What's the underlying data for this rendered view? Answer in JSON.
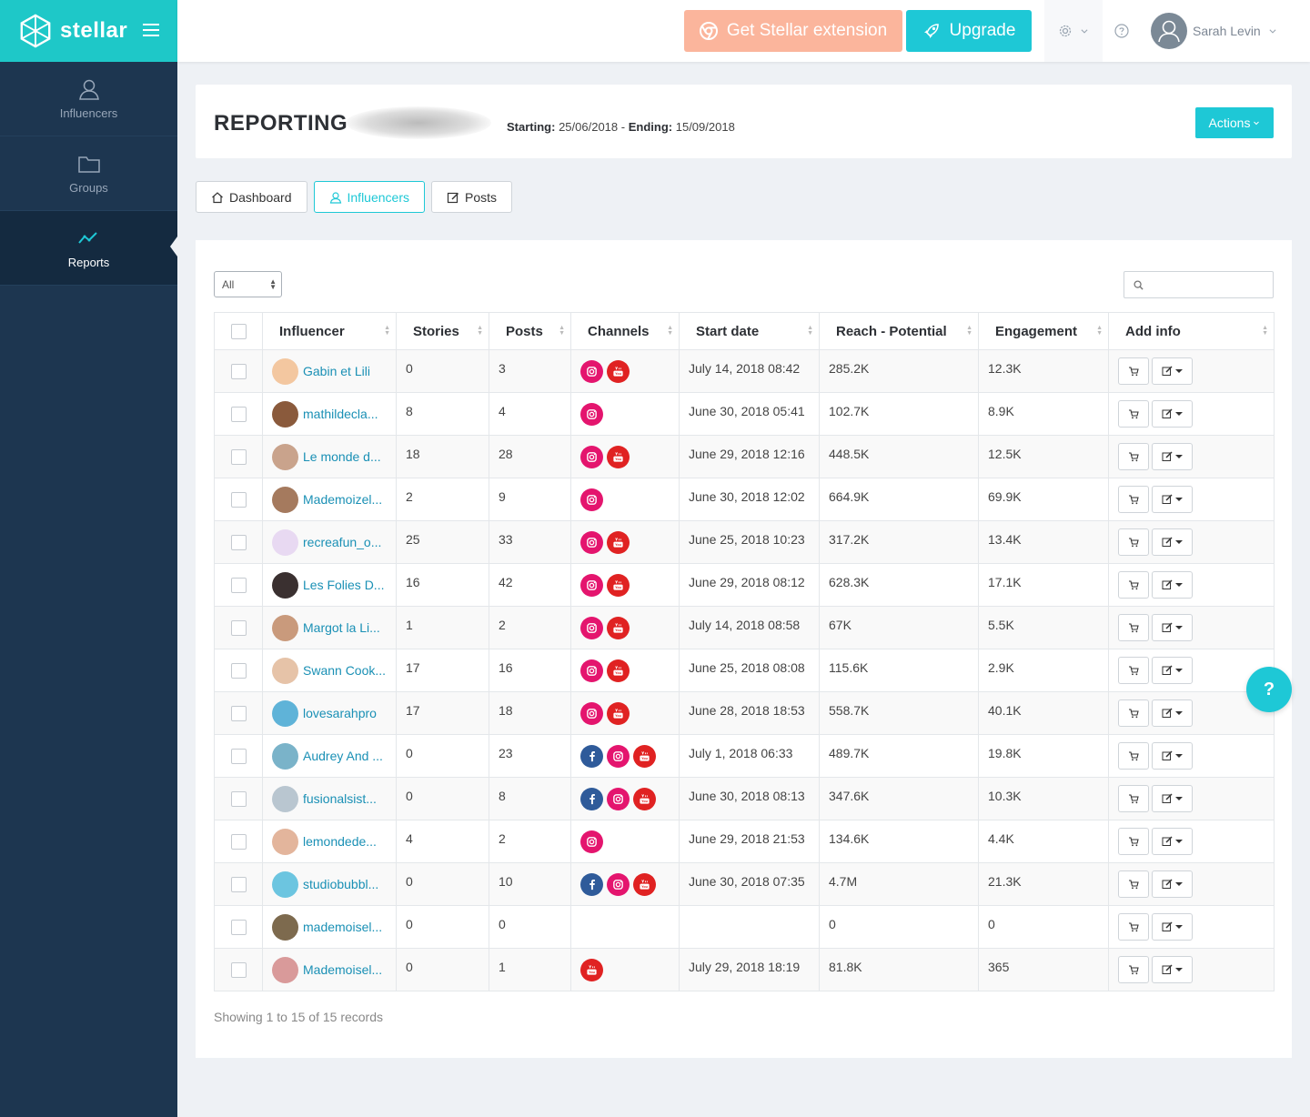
{
  "app": {
    "name": "stellar"
  },
  "sidebar": {
    "items": [
      {
        "label": "Influencers",
        "icon": "user-icon"
      },
      {
        "label": "Groups",
        "icon": "folder-icon"
      },
      {
        "label": "Reports",
        "icon": "trend-icon",
        "active": true
      }
    ]
  },
  "topbar": {
    "extension_label": "Get Stellar extension",
    "upgrade_label": "Upgrade",
    "user_name": "Sarah Levin"
  },
  "report": {
    "title": "REPORTING",
    "starting_label": "Starting:",
    "starting_value": "25/06/2018",
    "ending_label": "Ending:",
    "ending_value": "15/09/2018",
    "actions_label": "Actions"
  },
  "tabs": [
    {
      "label": "Dashboard",
      "icon": "home-icon"
    },
    {
      "label": "Influencers",
      "icon": "user-icon",
      "active": true
    },
    {
      "label": "Posts",
      "icon": "edit-icon"
    }
  ],
  "filter": {
    "selected": "All"
  },
  "table": {
    "columns": [
      "Influencer",
      "Stories",
      "Posts",
      "Channels",
      "Start date",
      "Reach - Potential",
      "Engagement",
      "Add info"
    ],
    "rows": [
      {
        "name": "Gabin et Lili",
        "stories": "0",
        "posts": "3",
        "channels": [
          "instagram",
          "youtube"
        ],
        "start": "July 14, 2018 08:42",
        "reach": "285.2K",
        "engagement": "12.3K",
        "avatar_color": "#f3c7a0"
      },
      {
        "name": "mathildecla...",
        "stories": "8",
        "posts": "4",
        "channels": [
          "instagram"
        ],
        "start": "June 30, 2018 05:41",
        "reach": "102.7K",
        "engagement": "8.9K",
        "avatar_color": "#8a5a3c"
      },
      {
        "name": "Le monde d...",
        "stories": "18",
        "posts": "28",
        "channels": [
          "instagram",
          "youtube"
        ],
        "start": "June 29, 2018 12:16",
        "reach": "448.5K",
        "engagement": "12.5K",
        "avatar_color": "#c9a38c"
      },
      {
        "name": "Mademoizel...",
        "stories": "2",
        "posts": "9",
        "channels": [
          "instagram"
        ],
        "start": "June 30, 2018 12:02",
        "reach": "664.9K",
        "engagement": "69.9K",
        "avatar_color": "#a57a5e"
      },
      {
        "name": "recreafun_o...",
        "stories": "25",
        "posts": "33",
        "channels": [
          "instagram",
          "youtube"
        ],
        "start": "June 25, 2018 10:23",
        "reach": "317.2K",
        "engagement": "13.4K",
        "avatar_color": "#e8d9f2"
      },
      {
        "name": "Les Folies D...",
        "stories": "16",
        "posts": "42",
        "channels": [
          "instagram",
          "youtube"
        ],
        "start": "June 29, 2018 08:12",
        "reach": "628.3K",
        "engagement": "17.1K",
        "avatar_color": "#3a3030"
      },
      {
        "name": "Margot la Li...",
        "stories": "1",
        "posts": "2",
        "channels": [
          "instagram",
          "youtube"
        ],
        "start": "July 14, 2018 08:58",
        "reach": "67K",
        "engagement": "5.5K",
        "avatar_color": "#c99a7c"
      },
      {
        "name": "Swann Cook...",
        "stories": "17",
        "posts": "16",
        "channels": [
          "instagram",
          "youtube"
        ],
        "start": "June 25, 2018 08:08",
        "reach": "115.6K",
        "engagement": "2.9K",
        "avatar_color": "#e6c3a8"
      },
      {
        "name": "lovesarahpro",
        "stories": "17",
        "posts": "18",
        "channels": [
          "instagram",
          "youtube"
        ],
        "start": "June 28, 2018 18:53",
        "reach": "558.7K",
        "engagement": "40.1K",
        "avatar_color": "#5fb3d8"
      },
      {
        "name": "Audrey And ...",
        "stories": "0",
        "posts": "23",
        "channels": [
          "facebook",
          "instagram",
          "youtube"
        ],
        "start": "July 1, 2018 06:33",
        "reach": "489.7K",
        "engagement": "19.8K",
        "avatar_color": "#7ab3c9"
      },
      {
        "name": "fusionalsist...",
        "stories": "0",
        "posts": "8",
        "channels": [
          "facebook",
          "instagram",
          "youtube"
        ],
        "start": "June 30, 2018 08:13",
        "reach": "347.6K",
        "engagement": "10.3K",
        "avatar_color": "#b9c6d0"
      },
      {
        "name": "lemondede...",
        "stories": "4",
        "posts": "2",
        "channels": [
          "instagram"
        ],
        "start": "June 29, 2018 21:53",
        "reach": "134.6K",
        "engagement": "4.4K",
        "avatar_color": "#e3b59c"
      },
      {
        "name": "studiobubbl...",
        "stories": "0",
        "posts": "10",
        "channels": [
          "facebook",
          "instagram",
          "youtube"
        ],
        "start": "June 30, 2018 07:35",
        "reach": "4.7M",
        "engagement": "21.3K",
        "avatar_color": "#6cc5e0"
      },
      {
        "name": "mademoisel...",
        "stories": "0",
        "posts": "0",
        "channels": [],
        "start": "",
        "reach": "0",
        "engagement": "0",
        "avatar_color": "#7d6a4e"
      },
      {
        "name": "Mademoisel...",
        "stories": "0",
        "posts": "1",
        "channels": [
          "youtube"
        ],
        "start": "July 29, 2018 18:19",
        "reach": "81.8K",
        "engagement": "365",
        "avatar_color": "#d99a9a"
      }
    ]
  },
  "footer": {
    "records_text": "Showing 1 to 15 of 15 records"
  },
  "help_fab": {
    "label": "?"
  },
  "colors": {
    "accent": "#1ec8d6",
    "sidebar": "#1d3650",
    "instagram": "#e4156e",
    "youtube": "#e02222",
    "facebook": "#2f5b9a"
  }
}
